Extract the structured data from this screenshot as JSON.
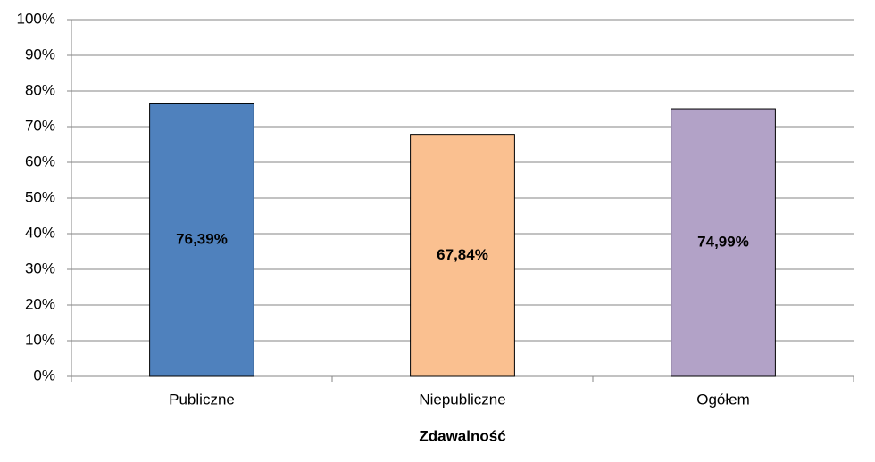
{
  "chart_data": {
    "type": "bar",
    "x_label": "Zdawalność",
    "categories": [
      "Publiczne",
      "Niepubliczne",
      "Ogółem"
    ],
    "values": [
      76.39,
      67.84,
      74.99
    ],
    "value_labels": [
      "76,39%",
      "67,84%",
      "74,99%"
    ],
    "colors": [
      "#4f81bd",
      "#fac090",
      "#b2a2c7"
    ],
    "ylim": [
      0,
      100
    ],
    "yticks": [
      {
        "value": 0,
        "label": "0%"
      },
      {
        "value": 10,
        "label": "10%"
      },
      {
        "value": 20,
        "label": "20%"
      },
      {
        "value": 30,
        "label": "30%"
      },
      {
        "value": 40,
        "label": "40%"
      },
      {
        "value": 50,
        "label": "50%"
      },
      {
        "value": 60,
        "label": "60%"
      },
      {
        "value": 70,
        "label": "70%"
      },
      {
        "value": 80,
        "label": "80%"
      },
      {
        "value": 90,
        "label": "90%"
      },
      {
        "value": 100,
        "label": "100%"
      }
    ],
    "grid": true
  }
}
